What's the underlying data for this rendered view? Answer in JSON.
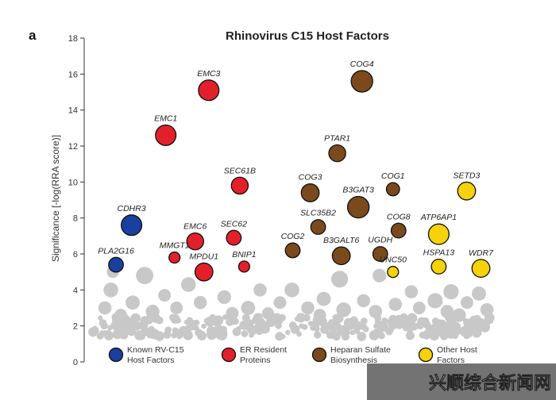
{
  "panel_label": "a",
  "watermark": "兴顺综合新闻网",
  "chart_data": {
    "type": "scatter",
    "title": "Rhinovirus C15 Host Factors",
    "ylabel": "Significance [-log(RRA score)]",
    "ylim": [
      0,
      18
    ],
    "yticks": [
      0,
      2,
      4,
      6,
      8,
      10,
      12,
      14,
      16,
      18
    ],
    "colors": {
      "known": "#1a3f9e",
      "er": "#e3202a",
      "heparan": "#7a4a1c",
      "other": "#f5d20a",
      "background": "#c8c8c8",
      "outline": "#111111"
    },
    "legend": [
      {
        "category": "known",
        "lines": [
          "Known RV-C15",
          "Host Factors"
        ]
      },
      {
        "category": "er",
        "lines": [
          "ER Resident",
          "Proteins"
        ]
      },
      {
        "category": "heparan",
        "lines": [
          "Heparan Sulfate",
          "Biosynthesis"
        ]
      },
      {
        "category": "other",
        "lines": [
          "Other Host",
          "Factors"
        ]
      }
    ],
    "points": [
      {
        "label": "COG4",
        "y": 15.6,
        "size": 3.2,
        "category": "heparan",
        "xi": 0.676
      },
      {
        "label": "EMC3",
        "y": 15.1,
        "size": 3.0,
        "category": "er",
        "xi": 0.291
      },
      {
        "label": "EMC1",
        "y": 12.6,
        "size": 3.0,
        "category": "er",
        "xi": 0.183
      },
      {
        "label": "PTAR1",
        "y": 11.6,
        "size": 2.3,
        "category": "heparan",
        "xi": 0.614
      },
      {
        "label": "SEC61B",
        "y": 9.8,
        "size": 2.3,
        "category": "er",
        "xi": 0.369
      },
      {
        "label": "COG3",
        "y": 9.4,
        "size": 2.5,
        "category": "heparan",
        "xi": 0.546
      },
      {
        "label": "COG1",
        "y": 9.6,
        "size": 1.6,
        "category": "heparan",
        "xi": 0.754
      },
      {
        "label": "SETD3",
        "y": 9.5,
        "size": 2.5,
        "category": "other",
        "xi": 0.939
      },
      {
        "label": "B3GAT3",
        "y": 8.6,
        "size": 3.2,
        "category": "heparan",
        "xi": 0.667
      },
      {
        "label": "CDHR3",
        "y": 7.6,
        "size": 3.0,
        "category": "known",
        "xi": 0.097
      },
      {
        "label": "SLC35B2",
        "y": 7.5,
        "size": 1.9,
        "category": "heparan",
        "xi": 0.566
      },
      {
        "label": "COG8",
        "y": 7.3,
        "size": 1.9,
        "category": "heparan",
        "xi": 0.768
      },
      {
        "label": "ATP6AP1",
        "y": 7.1,
        "size": 3.0,
        "category": "other",
        "xi": 0.869
      },
      {
        "label": "EMC6",
        "y": 6.7,
        "size": 2.3,
        "category": "er",
        "xi": 0.257
      },
      {
        "label": "SEC62",
        "y": 6.9,
        "size": 1.9,
        "category": "er",
        "xi": 0.354
      },
      {
        "label": "COG2",
        "y": 6.2,
        "size": 1.9,
        "category": "heparan",
        "xi": 0.502
      },
      {
        "label": "B3GALT6",
        "y": 5.9,
        "size": 2.5,
        "category": "heparan",
        "xi": 0.624
      },
      {
        "label": "UGDH",
        "y": 6.0,
        "size": 1.9,
        "category": "heparan",
        "xi": 0.722
      },
      {
        "label": "PLA2G16",
        "y": 5.4,
        "size": 1.9,
        "category": "known",
        "xi": 0.058
      },
      {
        "label": "MMGT1",
        "y": 5.8,
        "size": 1.2,
        "category": "er",
        "xi": 0.205
      },
      {
        "label": "MPDU1",
        "y": 5.0,
        "size": 2.5,
        "category": "er",
        "xi": 0.279
      },
      {
        "label": "BNIP1",
        "y": 5.3,
        "size": 1.2,
        "category": "er",
        "xi": 0.38
      },
      {
        "label": "UNC50",
        "y": 5.0,
        "size": 1.2,
        "category": "other",
        "xi": 0.754
      },
      {
        "label": "HSPA13",
        "y": 5.3,
        "size": 1.9,
        "category": "other",
        "xi": 0.869
      },
      {
        "label": "WDR7",
        "y": 5.2,
        "size": 2.5,
        "category": "other",
        "xi": 0.975
      }
    ],
    "background_points": [
      {
        "xi": 0.13,
        "y": 4.8,
        "size": 2.4
      },
      {
        "xi": 0.05,
        "y": 5.0,
        "size": 1.4
      },
      {
        "xi": 0.24,
        "y": 4.3,
        "size": 1.9
      },
      {
        "xi": 0.62,
        "y": 4.6,
        "size": 2.3
      },
      {
        "xi": 0.72,
        "y": 4.8,
        "size": 1.7
      },
      {
        "xi": 0.045,
        "y": 4.0,
        "size": 1.9
      },
      {
        "xi": 0.42,
        "y": 4.0,
        "size": 1.6
      },
      {
        "xi": 0.5,
        "y": 4.0,
        "size": 1.9
      },
      {
        "xi": 0.8,
        "y": 3.9,
        "size": 1.6
      },
      {
        "xi": 0.9,
        "y": 3.9,
        "size": 2.0
      },
      {
        "xi": 0.97,
        "y": 3.8,
        "size": 1.8
      },
      {
        "xi": 0.18,
        "y": 3.7,
        "size": 1.5
      },
      {
        "xi": 0.33,
        "y": 3.6,
        "size": 1.7
      },
      {
        "xi": 0.58,
        "y": 3.5,
        "size": 1.8
      },
      {
        "xi": 0.68,
        "y": 3.4,
        "size": 1.6
      },
      {
        "xi": 0.86,
        "y": 3.4,
        "size": 2.0
      },
      {
        "xi": 0.1,
        "y": 3.3,
        "size": 1.8
      },
      {
        "xi": 0.27,
        "y": 3.3,
        "size": 1.6
      },
      {
        "xi": 0.47,
        "y": 3.3,
        "size": 1.5
      },
      {
        "xi": 0.76,
        "y": 3.2,
        "size": 1.6
      },
      {
        "xi": 0.94,
        "y": 3.3,
        "size": 1.5
      },
      {
        "xi": 0.03,
        "y": 3.0,
        "size": 1.6
      },
      {
        "xi": 0.21,
        "y": 3.0,
        "size": 1.5
      },
      {
        "xi": 0.39,
        "y": 3.0,
        "size": 1.8
      },
      {
        "xi": 0.54,
        "y": 3.0,
        "size": 1.6
      },
      {
        "xi": 0.63,
        "y": 2.9,
        "size": 1.9
      },
      {
        "xi": 0.82,
        "y": 3.0,
        "size": 1.5
      },
      {
        "xi": 0.99,
        "y": 2.9,
        "size": 1.6
      },
      {
        "xi": 0.15,
        "y": 2.8,
        "size": 1.7
      },
      {
        "xi": 0.71,
        "y": 2.8,
        "size": 1.6
      },
      {
        "xi": 0.89,
        "y": 2.8,
        "size": 1.6
      },
      {
        "xi": 0.35,
        "y": 2.7,
        "size": 1.5
      },
      {
        "xi": 0.44,
        "y": 2.7,
        "size": 1.4
      },
      {
        "xi": 0.07,
        "y": 2.6,
        "size": 1.5
      },
      {
        "xi": 0.57,
        "y": 2.6,
        "size": 1.5
      },
      {
        "xi": 0.92,
        "y": 2.6,
        "size": 1.7
      }
    ],
    "background_cloud": {
      "count": 290,
      "y_range": [
        1.4,
        2.5
      ]
    }
  }
}
